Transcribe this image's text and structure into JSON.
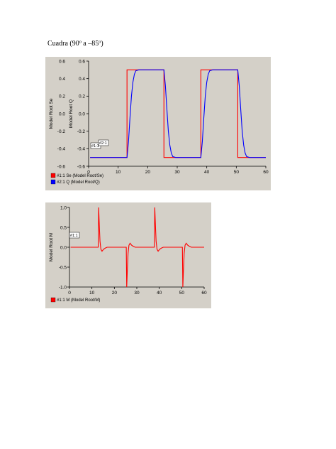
{
  "page": {
    "heading": "Cuadra (90º  a –85º)"
  },
  "chart_data": [
    {
      "type": "line",
      "ylabel_left": "Model Root Se",
      "ylabel_right": "Model Root Q",
      "xlim": [
        0,
        60
      ],
      "ylim": [
        -0.6,
        0.6
      ],
      "x_ticks": [
        "0",
        "10",
        "20",
        "30",
        "40",
        "50",
        "60"
      ],
      "y_ticks": [
        "0.6",
        "0.4",
        "0.2",
        "0.0",
        "-0.2",
        "-0.4",
        "-0.6"
      ],
      "grid": false,
      "legend_placement": "bottom-left",
      "series": [
        {
          "name": "#1:1 Se (Model Root/Se)",
          "color": "#ff0000",
          "x": [
            0.5,
            13.0,
            13.0,
            25.5,
            25.5,
            38.0,
            38.0,
            50.5,
            50.5,
            60
          ],
          "y": [
            -0.5,
            -0.5,
            0.5,
            0.5,
            -0.5,
            -0.5,
            0.5,
            0.5,
            -0.5,
            -0.5
          ]
        },
        {
          "name": "#2:1 Q (Model Root/Q)",
          "color": "#0000ff",
          "x": [
            0.5,
            13.0,
            13.5,
            14.0,
            14.5,
            15.0,
            15.5,
            16.0,
            17.0,
            25.5,
            26.0,
            26.5,
            27.0,
            27.5,
            28.0,
            28.5,
            29.5,
            38.0,
            38.5,
            39.0,
            39.5,
            40.0,
            40.5,
            41.0,
            42.0,
            50.5,
            51.0,
            51.5,
            52.0,
            52.5,
            53.0,
            53.5,
            54.5,
            60
          ],
          "y": [
            -0.5,
            -0.5,
            -0.32,
            -0.05,
            0.2,
            0.36,
            0.45,
            0.49,
            0.5,
            0.5,
            0.32,
            0.05,
            -0.2,
            -0.36,
            -0.45,
            -0.49,
            -0.5,
            -0.5,
            -0.32,
            -0.05,
            0.2,
            0.36,
            0.45,
            0.49,
            0.5,
            0.5,
            0.32,
            0.05,
            -0.2,
            -0.36,
            -0.45,
            -0.49,
            -0.5,
            -0.5
          ]
        }
      ],
      "tags": [
        "#1:1",
        "#2:1"
      ]
    },
    {
      "type": "line",
      "ylabel_left": "Model Root M",
      "xlim": [
        0,
        60
      ],
      "ylim": [
        -1.0,
        1.0
      ],
      "x_ticks": [
        "0",
        "10",
        "20",
        "30",
        "40",
        "50",
        "60"
      ],
      "y_ticks": [
        "1.0",
        "0.5",
        "0.0",
        "-0.5",
        "-1.0"
      ],
      "grid": false,
      "legend_placement": "bottom-left",
      "series": [
        {
          "name": "#1:1 M (Model Root/M)",
          "color": "#ff0000",
          "x": [
            0.5,
            12.8,
            13.0,
            13.3,
            13.6,
            14.0,
            14.5,
            15.2,
            16.0,
            16.8,
            18.0,
            25.3,
            25.5,
            25.8,
            26.1,
            26.5,
            27.0,
            27.7,
            28.5,
            29.3,
            30.5,
            37.8,
            38.0,
            38.3,
            38.6,
            39.0,
            39.5,
            40.2,
            41.0,
            41.8,
            43.0,
            50.3,
            50.5,
            50.8,
            51.1,
            51.5,
            52.0,
            52.7,
            53.5,
            54.3,
            55.5,
            60
          ],
          "y": [
            0.0,
            0.0,
            1.0,
            0.55,
            0.15,
            -0.05,
            -0.1,
            -0.05,
            -0.02,
            0.0,
            0.0,
            0.0,
            -1.0,
            -0.55,
            -0.15,
            0.05,
            0.1,
            0.05,
            0.02,
            0.0,
            0.0,
            0.0,
            1.0,
            0.55,
            0.15,
            -0.05,
            -0.1,
            -0.05,
            -0.02,
            0.0,
            0.0,
            0.0,
            -1.0,
            -0.55,
            -0.15,
            0.05,
            0.1,
            0.05,
            0.02,
            0.0,
            0.0,
            0.0
          ]
        }
      ],
      "tags": [
        "#1:1"
      ]
    }
  ]
}
